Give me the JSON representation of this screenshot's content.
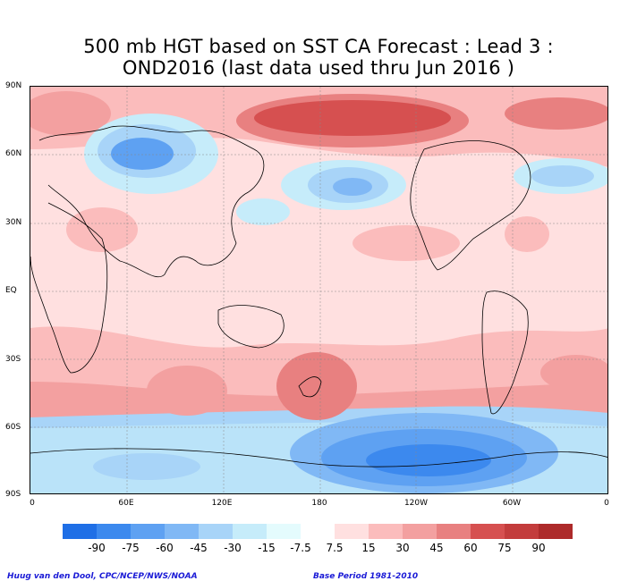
{
  "title": {
    "line1": "500 mb HGT based on SST CA Forecast : Lead 3 :",
    "line2": "OND2016 (last data used thru Jun 2016 )"
  },
  "axes": {
    "lat_labels": [
      "90N",
      "60N",
      "30N",
      "EQ",
      "30S",
      "60S",
      "90S"
    ],
    "lon_labels": [
      "0",
      "60E",
      "120E",
      "180",
      "120W",
      "60W",
      "0"
    ]
  },
  "colorbar": {
    "labels": [
      "-90",
      "-75",
      "-60",
      "-45",
      "-30",
      "-15",
      "-7.5",
      "7.5",
      "15",
      "30",
      "45",
      "60",
      "75",
      "90"
    ],
    "colors": [
      "#1f6fe6",
      "#3c89ee",
      "#5ea1f2",
      "#80b8f5",
      "#a8d4f8",
      "#c6ecfa",
      "#e4fbfd",
      "#ffffff",
      "#ffe0e0",
      "#fbbcbc",
      "#f3a0a0",
      "#e88080",
      "#d65050",
      "#c33c3c",
      "#ad2a2a"
    ]
  },
  "footer": {
    "left": "Huug van den Dool, CPC/NCEP/NWS/NOAA",
    "right": "Base Period 1981-2010"
  }
}
